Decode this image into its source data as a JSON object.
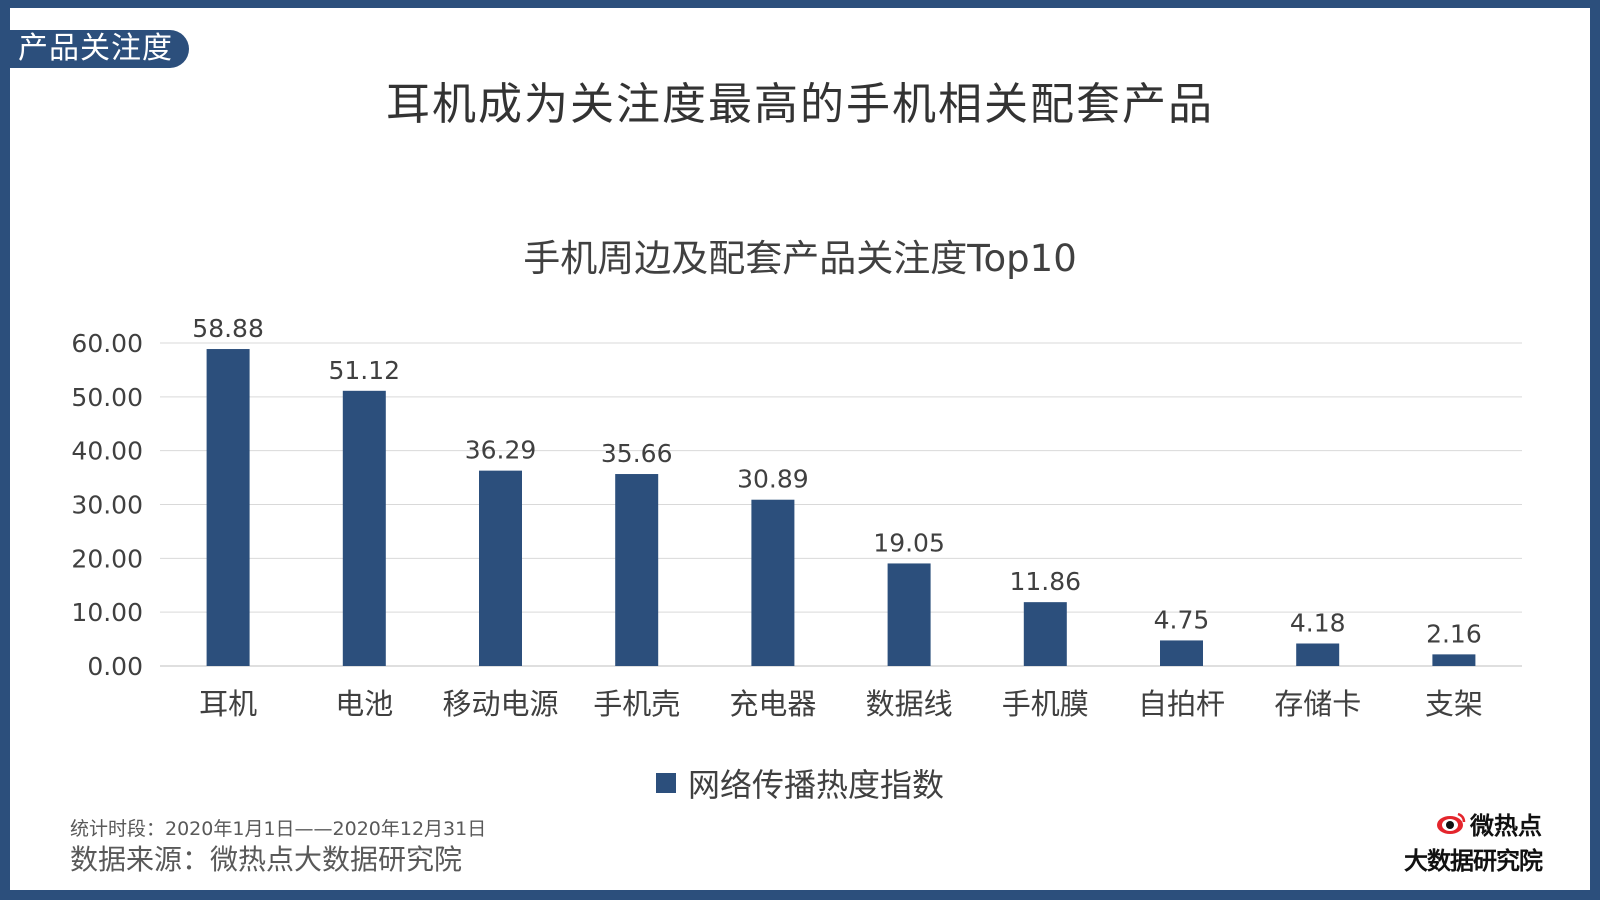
{
  "header": {
    "section_tag": "产品关注度",
    "title": "耳机成为关注度最高的手机相关配套产品"
  },
  "chart_data": {
    "type": "bar",
    "title": "手机周边及配套产品关注度Top10",
    "categories": [
      "耳机",
      "电池",
      "移动电源",
      "手机壳",
      "充电器",
      "数据线",
      "手机膜",
      "自拍杆",
      "存储卡",
      "支架"
    ],
    "series": [
      {
        "name": "网络传播热度指数",
        "values": [
          58.88,
          51.12,
          36.29,
          35.66,
          30.89,
          19.05,
          11.86,
          4.75,
          4.18,
          2.16
        ],
        "labels": [
          "58.88",
          "51.12",
          "36.29",
          "35.66",
          "30.89",
          "19.05",
          "11.86",
          "4.75",
          "4.18",
          "2.16"
        ]
      }
    ],
    "ylim": [
      0,
      60
    ],
    "yticks": [
      "0.00",
      "10.00",
      "20.00",
      "30.00",
      "40.00",
      "50.00",
      "60.00"
    ],
    "grid": true,
    "legend": "bottom-center",
    "bar_color": "#2c4f7c",
    "xlabel": "",
    "ylabel": ""
  },
  "footer": {
    "period": "统计时段：2020年1月1日——2020年12月31日",
    "source": "数据来源：微热点大数据研究院"
  },
  "logo": {
    "name": "微热点",
    "subtitle": "大数据研究院",
    "icon": "eye-logo-icon"
  },
  "colors": {
    "accent": "#2c4f7c",
    "logo_red": "#e4252c"
  }
}
